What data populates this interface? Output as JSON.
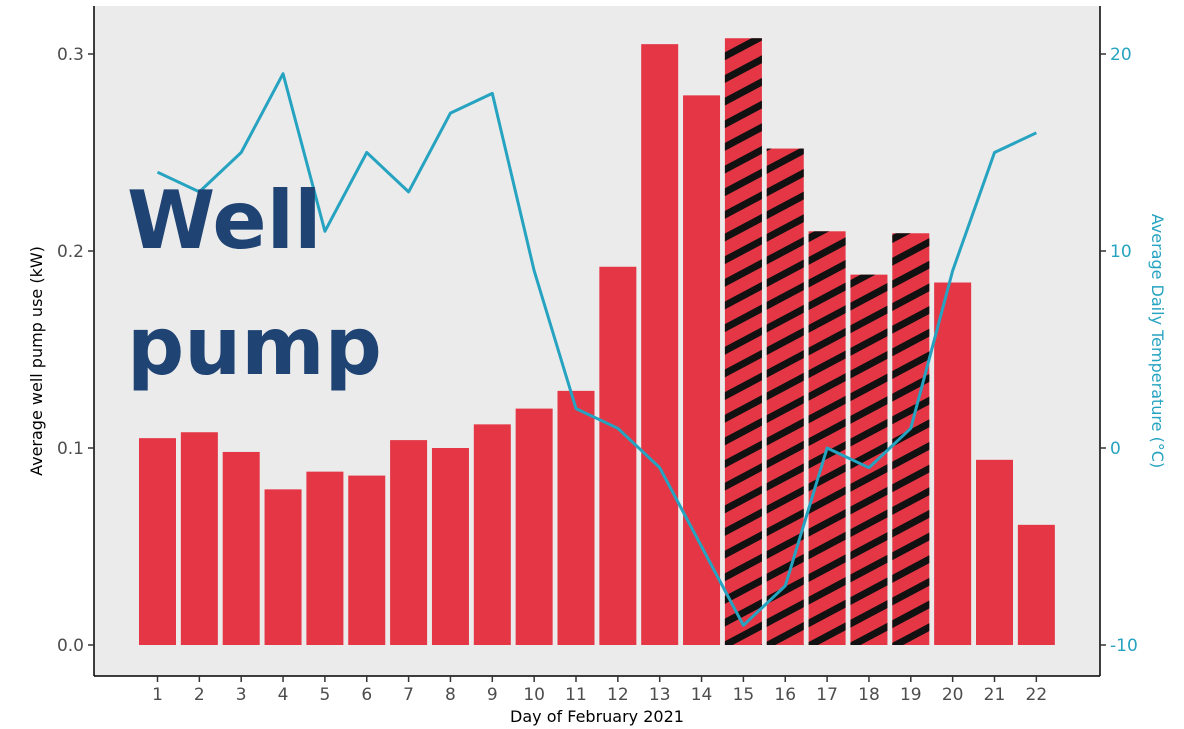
{
  "chart_data": {
    "type": "bar",
    "overlay_label_lines": [
      "Well",
      "pump"
    ],
    "xlabel": "Day of February 2021",
    "ylabel": "Average well pump use (kW)",
    "y2label": "Average Daily Temperature (°C)",
    "categories": [
      "1",
      "2",
      "3",
      "4",
      "5",
      "6",
      "7",
      "8",
      "9",
      "10",
      "11",
      "12",
      "13",
      "14",
      "15",
      "16",
      "17",
      "18",
      "19",
      "20",
      "21",
      "22"
    ],
    "ylim": [
      0,
      0.3
    ],
    "yticks": [
      "0.0",
      "0.1",
      "0.2",
      "0.3"
    ],
    "y2lim": [
      -10,
      20
    ],
    "y2ticks": [
      "-10",
      "0",
      "10",
      "20"
    ],
    "series": [
      {
        "kind": "bar",
        "axis": "left",
        "color": "#e43645",
        "values": [
          0.105,
          0.108,
          0.098,
          0.079,
          0.088,
          0.086,
          0.104,
          0.1,
          0.112,
          0.12,
          0.129,
          0.192,
          0.305,
          0.279,
          0.308,
          0.252,
          0.21,
          0.188,
          0.209,
          0.184,
          0.094,
          0.061
        ],
        "hatched_categories": [
          "15",
          "16",
          "17",
          "18",
          "19"
        ]
      },
      {
        "kind": "line",
        "axis": "right",
        "color": "#26a3c0",
        "values": [
          14,
          13,
          15,
          19,
          11,
          15,
          13,
          17,
          18,
          9,
          2,
          1,
          -1,
          -5,
          -9,
          -7,
          0,
          -1,
          1,
          9,
          15,
          16
        ]
      }
    ],
    "grid": false,
    "legend": "none",
    "background": "#ebebeb"
  }
}
